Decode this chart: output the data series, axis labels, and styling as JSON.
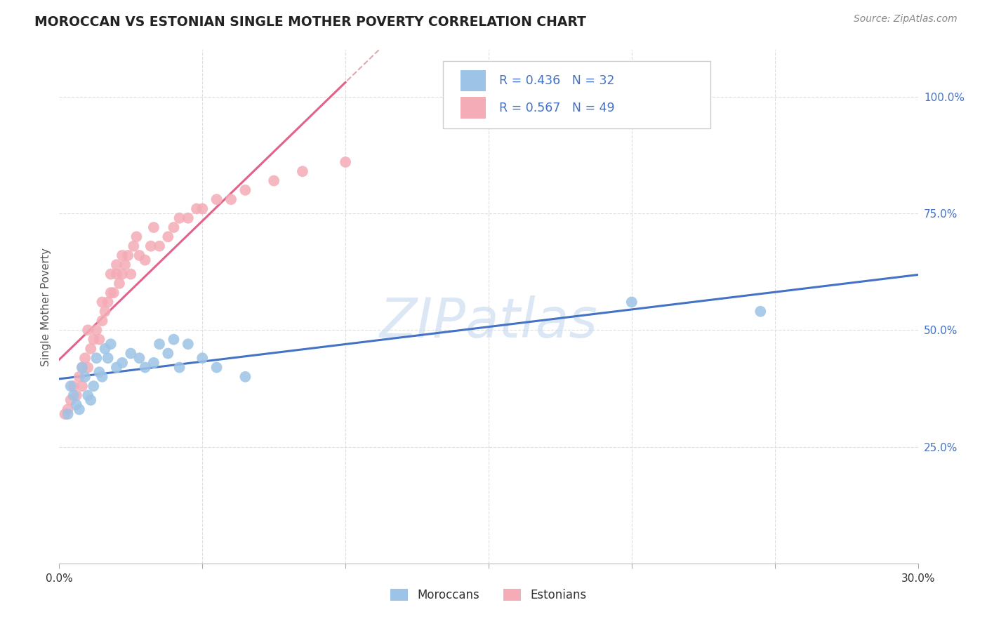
{
  "title": "MOROCCAN VS ESTONIAN SINGLE MOTHER POVERTY CORRELATION CHART",
  "source": "Source: ZipAtlas.com",
  "ylabel": "Single Mother Poverty",
  "xlim": [
    0.0,
    0.3
  ],
  "ylim": [
    0.0,
    1.1
  ],
  "xtick_pos": [
    0.0,
    0.05,
    0.1,
    0.15,
    0.2,
    0.25,
    0.3
  ],
  "xtick_labels": [
    "0.0%",
    "",
    "",
    "",
    "",
    "",
    "30.0%"
  ],
  "ytick_right_pos": [
    0.25,
    0.5,
    0.75,
    1.0
  ],
  "ytick_right_labels": [
    "25.0%",
    "50.0%",
    "75.0%",
    "100.0%"
  ],
  "moroccan_R": 0.436,
  "moroccan_N": 32,
  "estonian_R": 0.567,
  "estonian_N": 49,
  "moroccan_dot_color": "#9DC3E6",
  "estonian_dot_color": "#F4ACB7",
  "moroccan_line_color": "#4472C4",
  "estonian_line_color": "#E2628A",
  "legend_text_color": "#4472C4",
  "dashed_line_color": "#DDAAAA",
  "watermark_color": "#C5D8EF",
  "grid_color": "#DDDDDD",
  "moroccan_x": [
    0.003,
    0.004,
    0.005,
    0.006,
    0.007,
    0.008,
    0.009,
    0.01,
    0.011,
    0.012,
    0.013,
    0.014,
    0.015,
    0.016,
    0.017,
    0.018,
    0.02,
    0.022,
    0.025,
    0.028,
    0.03,
    0.033,
    0.035,
    0.038,
    0.04,
    0.042,
    0.045,
    0.05,
    0.055,
    0.065,
    0.2,
    0.245
  ],
  "moroccan_y": [
    0.32,
    0.38,
    0.36,
    0.34,
    0.33,
    0.42,
    0.4,
    0.36,
    0.35,
    0.38,
    0.44,
    0.41,
    0.4,
    0.46,
    0.44,
    0.47,
    0.42,
    0.43,
    0.45,
    0.44,
    0.42,
    0.43,
    0.47,
    0.45,
    0.48,
    0.42,
    0.47,
    0.44,
    0.42,
    0.4,
    0.56,
    0.54
  ],
  "estonian_x": [
    0.002,
    0.003,
    0.004,
    0.005,
    0.006,
    0.007,
    0.008,
    0.008,
    0.009,
    0.01,
    0.01,
    0.011,
    0.012,
    0.013,
    0.014,
    0.015,
    0.015,
    0.016,
    0.017,
    0.018,
    0.018,
    0.019,
    0.02,
    0.02,
    0.021,
    0.022,
    0.022,
    0.023,
    0.024,
    0.025,
    0.026,
    0.027,
    0.028,
    0.03,
    0.032,
    0.033,
    0.035,
    0.038,
    0.04,
    0.042,
    0.045,
    0.048,
    0.05,
    0.055,
    0.06,
    0.065,
    0.075,
    0.085,
    0.1
  ],
  "estonian_y": [
    0.32,
    0.33,
    0.35,
    0.38,
    0.36,
    0.4,
    0.38,
    0.42,
    0.44,
    0.42,
    0.5,
    0.46,
    0.48,
    0.5,
    0.48,
    0.52,
    0.56,
    0.54,
    0.56,
    0.58,
    0.62,
    0.58,
    0.62,
    0.64,
    0.6,
    0.66,
    0.62,
    0.64,
    0.66,
    0.62,
    0.68,
    0.7,
    0.66,
    0.65,
    0.68,
    0.72,
    0.68,
    0.7,
    0.72,
    0.74,
    0.74,
    0.76,
    0.76,
    0.78,
    0.78,
    0.8,
    0.82,
    0.84,
    0.86
  ],
  "bottom_legend_labels": [
    "Moroccans",
    "Estonians"
  ]
}
